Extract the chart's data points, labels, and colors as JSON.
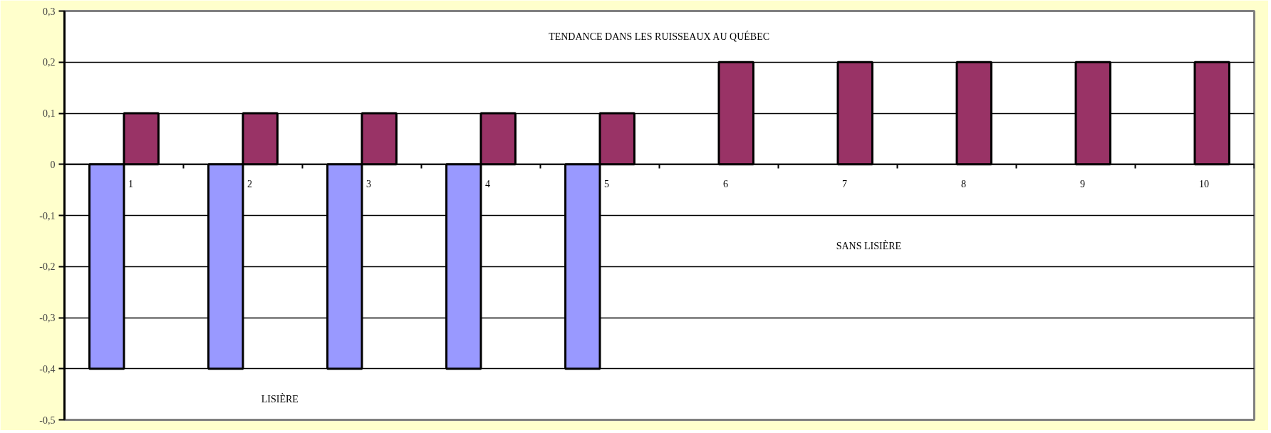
{
  "chart_data": {
    "type": "bar",
    "title": "TENDANCE DANS LES RUISSEAUX AU QUÉBEC",
    "categories": [
      "1",
      "2",
      "3",
      "4",
      "5",
      "6",
      "7",
      "8",
      "9",
      "10"
    ],
    "series": [
      {
        "color": "#9999ff",
        "values": [
          -0.4,
          -0.4,
          -0.4,
          -0.4,
          -0.4,
          null,
          null,
          null,
          null,
          null
        ]
      },
      {
        "color": "#993366",
        "values": [
          0.1,
          0.1,
          0.1,
          0.1,
          0.1,
          0.2,
          0.2,
          0.2,
          0.2,
          0.2
        ]
      }
    ],
    "ylim": [
      -0.5,
      0.3
    ],
    "yticks": [
      {
        "value": -0.5,
        "label": "-0,5"
      },
      {
        "value": -0.4,
        "label": "-0,4"
      },
      {
        "value": -0.3,
        "label": "-0,3"
      },
      {
        "value": -0.2,
        "label": "-0,2"
      },
      {
        "value": -0.1,
        "label": "-0,1"
      },
      0,
      {
        "value": 0.1,
        "label": "0,1"
      },
      {
        "value": 0.2,
        "label": "0,2"
      },
      {
        "value": 0.3,
        "label": "0,3"
      }
    ],
    "grid": "y",
    "annotations": [
      "LISIÈRE",
      "SANS LISIÈRE"
    ]
  }
}
